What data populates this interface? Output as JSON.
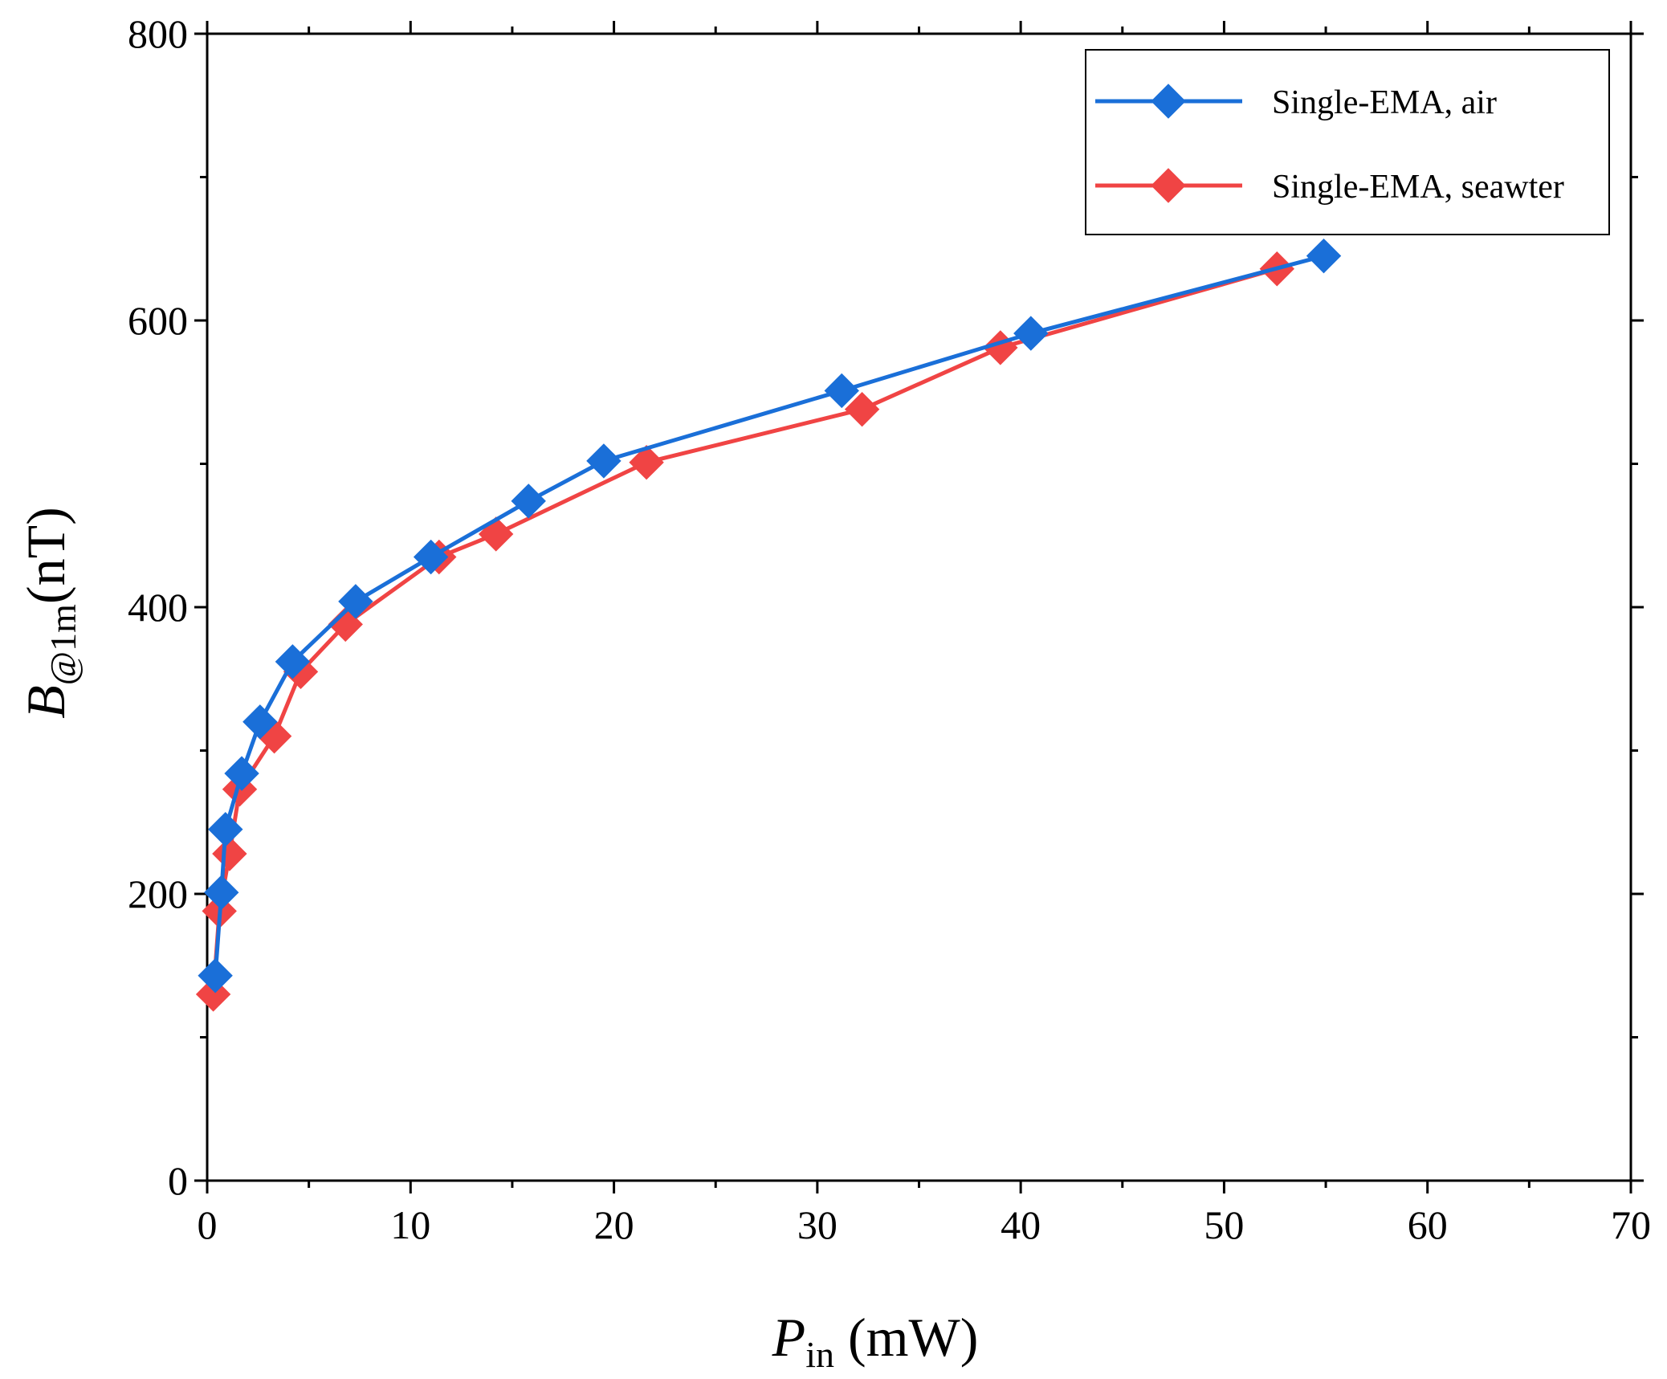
{
  "chart_data": {
    "type": "line",
    "title": "",
    "xlabel": {
      "main": "P",
      "sub": "in",
      "rest": " (mW)"
    },
    "ylabel": {
      "main": "B",
      "sub": "@1m",
      "rest": "(nT)"
    },
    "xlim": [
      0,
      70
    ],
    "ylim": [
      0,
      800
    ],
    "x_ticks": [
      0,
      10,
      20,
      30,
      40,
      50,
      60,
      70
    ],
    "y_ticks": [
      0,
      200,
      400,
      600,
      800
    ],
    "grid": false,
    "legend": "top-right",
    "series": [
      {
        "name": "Single-EMA, air",
        "color": "#1a6fd8",
        "marker": "diamond",
        "x": [
          0.4,
          0.7,
          0.9,
          1.7,
          2.6,
          4.2,
          7.3,
          11.0,
          15.8,
          19.5,
          31.2,
          40.5,
          54.9
        ],
        "y": [
          143,
          201,
          245,
          284,
          320,
          362,
          404,
          435,
          474,
          502,
          551,
          591,
          645
        ]
      },
      {
        "name": "Single-EMA, seawter",
        "color": "#f04444",
        "marker": "diamond",
        "x": [
          0.3,
          0.6,
          1.1,
          1.6,
          3.3,
          4.6,
          6.8,
          11.4,
          14.2,
          21.6,
          32.2,
          39.0,
          52.6
        ],
        "y": [
          130,
          188,
          228,
          273,
          310,
          355,
          388,
          435,
          451,
          501,
          538,
          581,
          636
        ]
      }
    ]
  }
}
